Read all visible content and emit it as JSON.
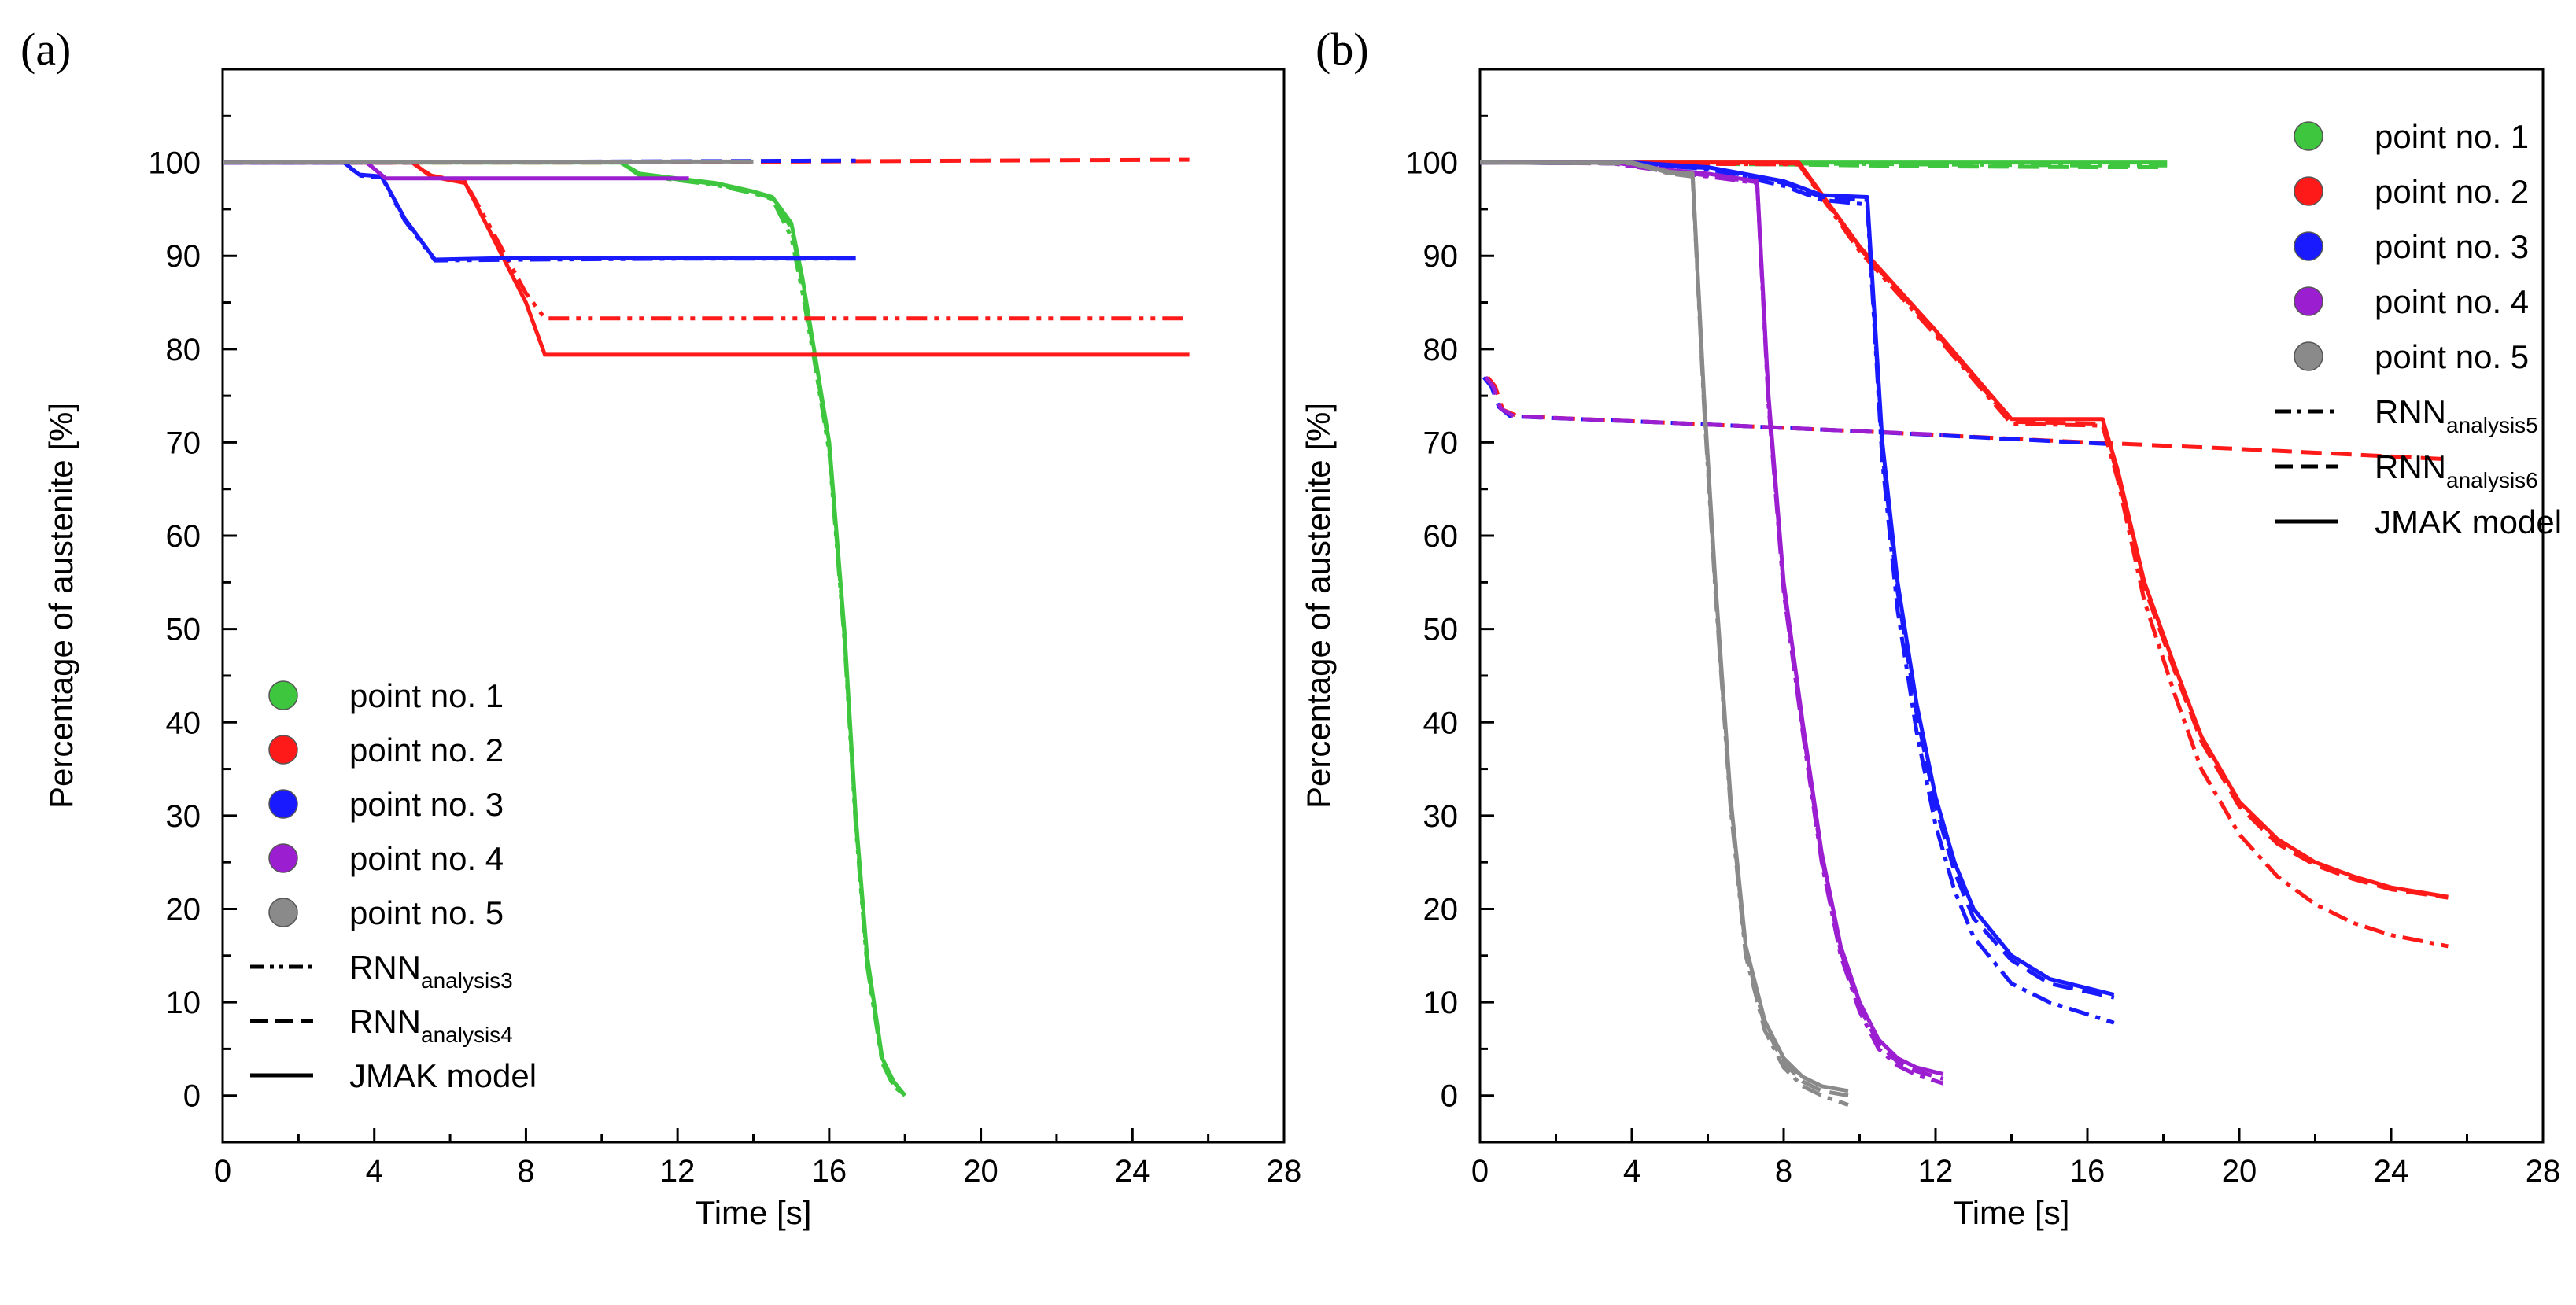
{
  "chart_data": [
    {
      "type": "line",
      "panel_label": "(a)",
      "xlabel": "Time [s]",
      "ylabel": "Percentage of austenite [%]",
      "xlim": [
        0,
        28
      ],
      "ylim": [
        -5,
        110
      ],
      "xticks": [
        0,
        4,
        8,
        12,
        16,
        20,
        24,
        28
      ],
      "yticks": [
        0,
        10,
        20,
        30,
        40,
        50,
        60,
        70,
        80,
        90,
        100
      ],
      "legend_position": "bottom-left",
      "legend": {
        "points": [
          {
            "label": "point no. 1",
            "color": "#3ec63e"
          },
          {
            "label": "point no. 2",
            "color": "#ff1a1a"
          },
          {
            "label": "point no. 3",
            "color": "#1a1aff"
          },
          {
            "label": "point no. 4",
            "color": "#9b1ed0"
          },
          {
            "label": "point no. 5",
            "color": "#8a8a8a"
          }
        ],
        "lines": [
          {
            "base": "RNN",
            "sub": "analysis3",
            "style": "dashdotdot"
          },
          {
            "base": "RNN",
            "sub": "analysis4",
            "style": "dash"
          },
          {
            "base": "JMAK model",
            "sub": "",
            "style": "solid"
          }
        ]
      },
      "series": [
        {
          "name": "point no. 1 JMAK model",
          "color": "#3ec63e",
          "style": "solid",
          "x": [
            0,
            10.5,
            11,
            12,
            13,
            14,
            14.5,
            15,
            15.3,
            15.6,
            16,
            16.4,
            16.7,
            17,
            17.4,
            17.7,
            18
          ],
          "y": [
            100,
            100,
            98.8,
            98.3,
            97.8,
            96.9,
            96.3,
            93.5,
            87.5,
            80,
            70,
            50,
            30,
            15,
            4,
            1.5,
            0
          ]
        },
        {
          "name": "point no. 1 RNN analysis3",
          "color": "#3ec63e",
          "style": "dashdotdot",
          "x": [
            0,
            10.5,
            11,
            12,
            13,
            14,
            14.5,
            15,
            15.3,
            15.6,
            16,
            16.4,
            16.7,
            17,
            17.4,
            17.7,
            18
          ],
          "y": [
            100,
            100,
            98.6,
            98.1,
            97.6,
            96.7,
            96.1,
            92,
            86,
            79,
            69,
            49,
            29,
            14,
            3.5,
            1,
            0
          ]
        },
        {
          "name": "point no. 1 RNN analysis4",
          "color": "#3ec63e",
          "style": "dash",
          "x": [
            0,
            10.5,
            11,
            12,
            13,
            14,
            14.5,
            15,
            15.3,
            15.6,
            16,
            16.4,
            16.7,
            17,
            17.4,
            17.7,
            18
          ],
          "y": [
            100,
            100,
            98.7,
            98.2,
            97.7,
            96.8,
            96.2,
            93,
            87,
            79.5,
            69.5,
            49.5,
            29.5,
            14.5,
            3.8,
            1.2,
            0
          ]
        },
        {
          "name": "point no. 2 JMAK model",
          "color": "#ff1a1a",
          "style": "solid",
          "x": [
            0,
            5,
            5.5,
            6.4,
            7,
            8,
            8.5,
            10,
            15,
            20,
            25.5
          ],
          "y": [
            100,
            100,
            98.5,
            97.8,
            93,
            85,
            79.4,
            79.4,
            79.4,
            79.4,
            79.4
          ]
        },
        {
          "name": "point no. 2 RNN analysis3",
          "color": "#ff1a1a",
          "style": "dashdotdot",
          "x": [
            0,
            5,
            5.5,
            6.4,
            7,
            8,
            8.5,
            10,
            15,
            20,
            25.5
          ],
          "y": [
            100,
            100,
            98.6,
            97.9,
            93.5,
            86,
            83.3,
            83.3,
            83.3,
            83.3,
            83.3
          ]
        },
        {
          "name": "point no. 2 RNN analysis4",
          "color": "#ff1a1a",
          "style": "dash",
          "x": [
            0,
            5,
            10,
            15,
            20,
            25.5
          ],
          "y": [
            100,
            100,
            100,
            100.1,
            100.2,
            100.3
          ]
        },
        {
          "name": "point no. 3 JMAK model",
          "color": "#1a1aff",
          "style": "solid",
          "x": [
            0,
            3.2,
            3.6,
            4.2,
            4.8,
            5.6,
            8,
            12,
            16.7
          ],
          "y": [
            100,
            100,
            98.7,
            98.5,
            94,
            89.6,
            89.8,
            89.8,
            89.8
          ]
        },
        {
          "name": "point no. 3 RNN analysis3",
          "color": "#1a1aff",
          "style": "dashdotdot",
          "x": [
            0,
            3.2,
            3.6,
            4.2,
            4.8,
            5.6,
            8,
            12,
            16.7
          ],
          "y": [
            100,
            100,
            98.6,
            98.4,
            93.8,
            89.5,
            89.6,
            89.7,
            89.7
          ]
        },
        {
          "name": "point no. 3 RNN analysis4",
          "color": "#1a1aff",
          "style": "dash",
          "x": [
            0,
            5,
            10,
            16.7
          ],
          "y": [
            100,
            100,
            100.1,
            100.2
          ]
        },
        {
          "name": "point no. 4 JMAK model",
          "color": "#9b1ed0",
          "style": "solid",
          "x": [
            0,
            3.8,
            4.3,
            8,
            12.3
          ],
          "y": [
            100,
            100,
            98.3,
            98.3,
            98.3
          ]
        },
        {
          "name": "point no. 5 JMAK model",
          "color": "#8a8a8a",
          "style": "solid",
          "x": [
            0,
            6,
            12,
            14
          ],
          "y": [
            100,
            100.05,
            100.1,
            100.1
          ]
        }
      ]
    },
    {
      "type": "line",
      "panel_label": "(b)",
      "xlabel": "Time [s]",
      "ylabel": "Percentage of austenite [%]",
      "xlim": [
        0,
        28
      ],
      "ylim": [
        -5,
        110
      ],
      "xticks": [
        0,
        4,
        8,
        12,
        16,
        20,
        24,
        28
      ],
      "yticks": [
        0,
        10,
        20,
        30,
        40,
        50,
        60,
        70,
        80,
        90,
        100
      ],
      "legend_position": "top-right",
      "legend": {
        "points": [
          {
            "label": "point no. 1",
            "color": "#3ec63e"
          },
          {
            "label": "point no. 2",
            "color": "#ff1a1a"
          },
          {
            "label": "point no. 3",
            "color": "#1a1aff"
          },
          {
            "label": "point no. 4",
            "color": "#9b1ed0"
          },
          {
            "label": "point no. 5",
            "color": "#8a8a8a"
          }
        ],
        "lines": [
          {
            "base": "RNN",
            "sub": "analysis5",
            "style": "dashdot"
          },
          {
            "base": "RNN",
            "sub": "analysis6",
            "style": "dash"
          },
          {
            "base": "JMAK model",
            "sub": "",
            "style": "solid"
          }
        ]
      },
      "series": [
        {
          "name": "RNN analysis6 point no. 2",
          "color": "#ff1a1a",
          "style": "dash",
          "x": [
            0.2,
            0.4,
            0.6,
            1.0,
            5,
            10,
            15,
            20,
            25.5
          ],
          "y": [
            77,
            76,
            73.5,
            72.8,
            72.1,
            71.2,
            70.2,
            69.3,
            68.2
          ]
        },
        {
          "name": "RNN analysis6 point no. 3",
          "color": "#1a1aff",
          "style": "dash",
          "x": [
            0.1,
            0.3,
            0.5,
            0.8,
            5,
            10,
            16.7
          ],
          "y": [
            77,
            76,
            73.8,
            72.8,
            72.1,
            71.2,
            69.8
          ]
        },
        {
          "name": "RNN analysis6 point no. 4",
          "color": "#9b1ed0",
          "style": "dash",
          "x": [
            0.15,
            0.35,
            0.55,
            0.9,
            5,
            10,
            12.2
          ],
          "y": [
            77,
            76,
            73.6,
            72.8,
            72.1,
            71.2,
            70.8
          ]
        },
        {
          "name": "point no. 1 JMAK model",
          "color": "#3ec63e",
          "style": "solid",
          "x": [
            0,
            8,
            12,
            16,
            18.1
          ],
          "y": [
            100,
            100,
            100,
            100,
            100
          ]
        },
        {
          "name": "point no. 1 RNN analysis5",
          "color": "#3ec63e",
          "style": "dashdot",
          "x": [
            0,
            8,
            12,
            16,
            18.1
          ],
          "y": [
            100,
            99.9,
            99.8,
            99.7,
            99.7
          ]
        },
        {
          "name": "point no. 1 RNN analysis6",
          "color": "#3ec63e",
          "style": "dash",
          "x": [
            0,
            8,
            12,
            16,
            18.1
          ],
          "y": [
            100,
            99.8,
            99.6,
            99.5,
            99.5
          ]
        },
        {
          "name": "point no. 2 JMAK model",
          "color": "#ff1a1a",
          "style": "solid",
          "x": [
            0,
            8.4,
            10,
            12,
            14,
            16.4,
            16.8,
            17.5,
            18.3,
            19,
            20,
            21,
            22,
            23,
            24,
            25.5
          ],
          "y": [
            100,
            100,
            91,
            82,
            72.5,
            72.5,
            67,
            55,
            46,
            38.5,
            31.5,
            27.5,
            25,
            23.5,
            22.3,
            21.3
          ]
        },
        {
          "name": "point no. 2 RNN analysis5",
          "color": "#ff1a1a",
          "style": "dashdot",
          "x": [
            0,
            8.4,
            10,
            12,
            14,
            16.4,
            16.8,
            17.5,
            18.3,
            19,
            20,
            21,
            22,
            23,
            24,
            25.5
          ],
          "y": [
            100,
            99.8,
            90.5,
            81.5,
            72,
            71.8,
            66,
            53,
            43,
            35,
            28,
            23.5,
            20.5,
            18.5,
            17.2,
            16
          ]
        },
        {
          "name": "point no. 2 RNN analysis6",
          "color": "#ff1a1a",
          "style": "dash",
          "x": [
            0,
            8.4,
            10,
            12,
            14,
            16.4,
            16.8,
            17.5,
            18.3,
            19,
            20,
            21,
            22,
            23,
            24,
            25.5
          ],
          "y": [
            100,
            99.9,
            90.8,
            81.8,
            72.2,
            72,
            66.5,
            54.5,
            45.5,
            38,
            31,
            27,
            24.7,
            23.2,
            22.1,
            21.2
          ]
        },
        {
          "name": "point no. 3 JMAK model",
          "color": "#1a1aff",
          "style": "solid",
          "x": [
            0,
            4,
            6,
            8,
            9,
            10.2,
            10.6,
            11,
            11.5,
            12,
            12.5,
            13,
            14,
            15,
            16.7
          ],
          "y": [
            100,
            100,
            99.5,
            98,
            96.5,
            96.3,
            70,
            55,
            42,
            32,
            25,
            20,
            15,
            12.5,
            10.8
          ]
        },
        {
          "name": "point no. 3 RNN analysis5",
          "color": "#1a1aff",
          "style": "dashdot",
          "x": [
            0,
            4,
            6,
            8,
            9,
            10.2,
            10.6,
            11,
            11.5,
            12,
            12.5,
            13,
            14,
            15,
            16.7
          ],
          "y": [
            100,
            99.9,
            99.3,
            97.5,
            96,
            95.5,
            68,
            52,
            39,
            29,
            22,
            17,
            12,
            10,
            7.8
          ]
        },
        {
          "name": "point no. 3 RNN analysis6",
          "color": "#1a1aff",
          "style": "dash",
          "x": [
            0,
            4,
            6,
            8,
            9,
            10.2,
            10.6,
            11,
            11.5,
            12,
            12.5,
            13,
            14,
            15,
            16.7
          ],
          "y": [
            100,
            99.9,
            99.4,
            97.8,
            96.3,
            96,
            69,
            54,
            41,
            31,
            24,
            19,
            14.5,
            12,
            10.5
          ]
        },
        {
          "name": "point no. 4 JMAK model",
          "color": "#9b1ed0",
          "style": "solid",
          "x": [
            0,
            3.5,
            5,
            6,
            7.3,
            7.6,
            8,
            8.5,
            9,
            9.5,
            10,
            10.5,
            11,
            11.5,
            12.2
          ],
          "y": [
            100,
            100,
            99.2,
            98.8,
            98,
            75,
            55,
            40,
            26,
            16,
            10,
            6,
            4,
            3,
            2.3
          ]
        },
        {
          "name": "point no. 4 RNN analysis5",
          "color": "#9b1ed0",
          "style": "dashdot",
          "x": [
            0,
            3.5,
            5,
            6,
            7.3,
            7.6,
            8,
            8.5,
            9,
            9.5,
            10,
            10.5,
            11,
            11.5,
            12.2
          ],
          "y": [
            100,
            99.9,
            99,
            98.5,
            97.8,
            74,
            54,
            39,
            25,
            15,
            9,
            5,
            3.2,
            2.2,
            1.3
          ]
        },
        {
          "name": "point no. 4 RNN analysis6",
          "color": "#9b1ed0",
          "style": "dash",
          "x": [
            0,
            3.5,
            5,
            6,
            7.3,
            7.6,
            8,
            8.5,
            9,
            9.5,
            10,
            10.5,
            11,
            11.5,
            12.2
          ],
          "y": [
            100,
            99.9,
            99.1,
            98.6,
            97.9,
            74.5,
            54.5,
            39.5,
            25.5,
            15.5,
            9.5,
            5.5,
            3.6,
            2.6,
            1.8
          ]
        },
        {
          "name": "point no. 5 JMAK model",
          "color": "#8a8a8a",
          "style": "solid",
          "x": [
            0,
            4,
            5,
            5.6,
            5.9,
            6.2,
            6.6,
            7,
            7.5,
            8,
            8.5,
            9,
            9.7
          ],
          "y": [
            100,
            100,
            99,
            98.8,
            75,
            55,
            32,
            16,
            8,
            4,
            2,
            1,
            0.5
          ]
        },
        {
          "name": "point no. 5 RNN analysis5",
          "color": "#8a8a8a",
          "style": "dashdot",
          "x": [
            0,
            4,
            5,
            5.6,
            5.9,
            6.2,
            6.6,
            7,
            7.5,
            8,
            8.5,
            9,
            9.7
          ],
          "y": [
            100,
            99.9,
            98.8,
            98.5,
            74,
            54,
            31,
            15,
            7,
            3,
            1,
            0,
            -1
          ]
        },
        {
          "name": "point no. 5 RNN analysis6",
          "color": "#8a8a8a",
          "style": "dash",
          "x": [
            0,
            4,
            5,
            5.6,
            5.9,
            6.2,
            6.6,
            7,
            7.5,
            8,
            8.5,
            9,
            9.7
          ],
          "y": [
            100,
            99.9,
            98.9,
            98.6,
            74.5,
            54.5,
            31.5,
            15.5,
            7.5,
            3.5,
            1.5,
            0.5,
            0
          ]
        }
      ]
    }
  ]
}
